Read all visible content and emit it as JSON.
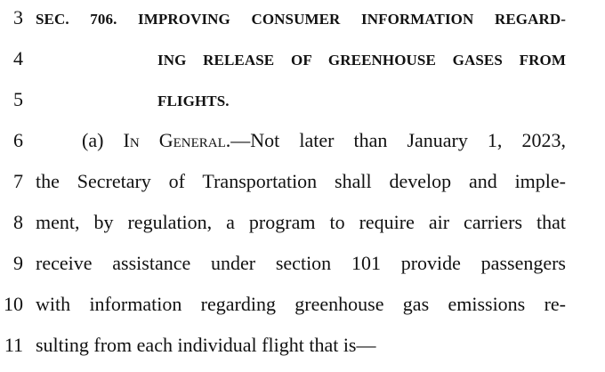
{
  "lines": [
    {
      "number": "3",
      "text": "SEC. 706. IMPROVING CONSUMER INFORMATION REGARD-"
    },
    {
      "number": "4",
      "text": "ING RELEASE OF GREENHOUSE GASES FROM"
    },
    {
      "number": "5",
      "text": "FLIGHTS."
    },
    {
      "number": "6",
      "prefix": "(a) ",
      "small_caps": "In General",
      "text": ".—Not later than January 1, 2023,"
    },
    {
      "number": "7",
      "text": "the Secretary of Transportation shall develop and imple-"
    },
    {
      "number": "8",
      "text": "ment, by regulation, a program to require air carriers that"
    },
    {
      "number": "9",
      "text": "receive assistance under section 101 provide passengers"
    },
    {
      "number": "10",
      "text": "with information regarding greenhouse gas emissions re-"
    },
    {
      "number": "11",
      "text": "sulting from each individual flight that is—"
    }
  ]
}
